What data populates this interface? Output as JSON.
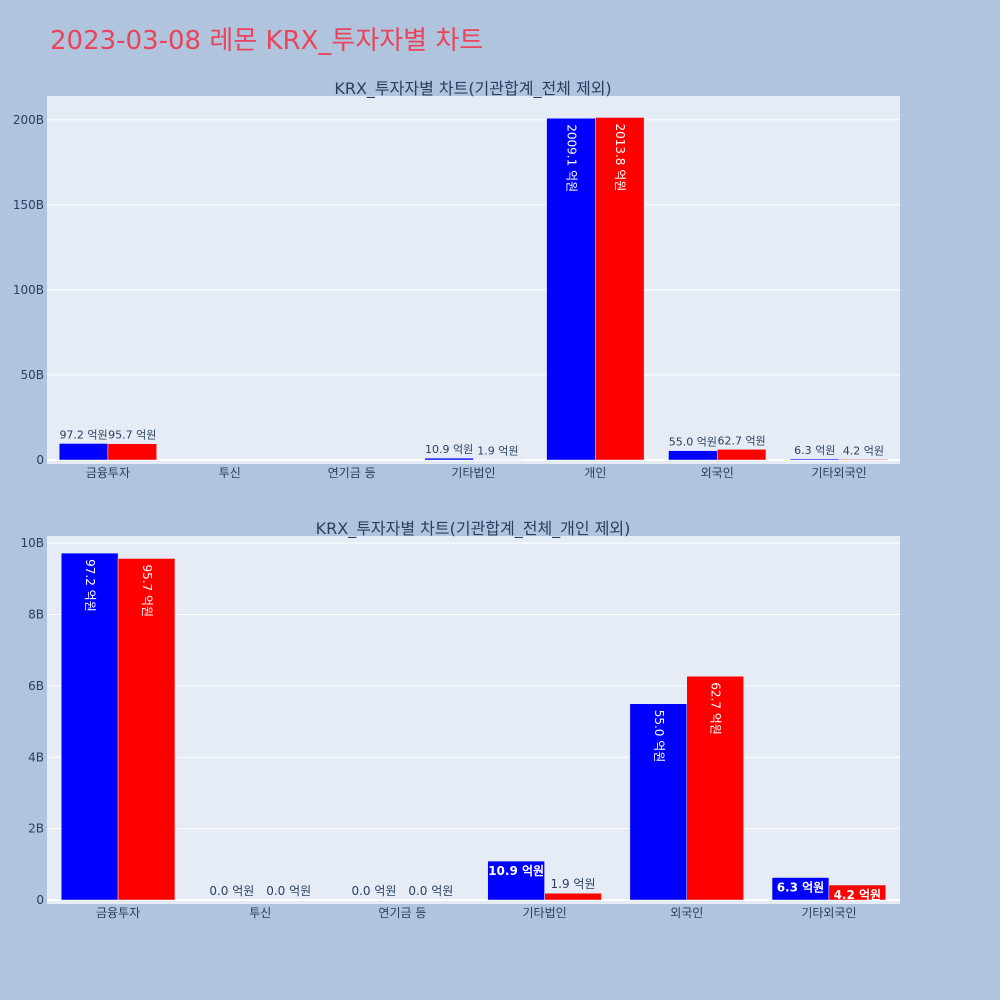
{
  "page_title": "2023-03-08 레몬 KRX_투자자별 차트",
  "colors": {
    "background": "#b0c4de",
    "plot_bg": "#e5ecf6",
    "title": "#e8445a",
    "series_a": "#0000ff",
    "series_b": "#ff0000",
    "text": "#2a3f5f"
  },
  "chart_data": [
    {
      "type": "bar",
      "title": "KRX_투자자별 차트(기관합계_전체 제외)",
      "categories": [
        "금융투자",
        "투신",
        "연기금 등",
        "기타법인",
        "개인",
        "외국인",
        "기타외국인"
      ],
      "series": [
        {
          "color": "#0000ff",
          "values": [
            9720000000,
            0,
            0,
            1090000000,
            200910000000,
            5500000000,
            630000000
          ],
          "labels": [
            "97.2 억원",
            "",
            "",
            "10.9 억원",
            "2009.1 억원",
            "55.0 억원",
            "6.3 억원"
          ]
        },
        {
          "color": "#ff0000",
          "values": [
            9570000000,
            0,
            0,
            190000000,
            201380000000,
            6270000000,
            420000000
          ],
          "labels": [
            "95.7 억원",
            "",
            "",
            "1.9 억원",
            "2013.8 억원",
            "62.7 억원",
            "4.2 억원"
          ]
        }
      ],
      "ylim": [
        0,
        214000000000
      ],
      "y_ticks": [
        0,
        50000000000,
        100000000000,
        150000000000,
        200000000000
      ],
      "y_tick_labels": [
        "0",
        "50B",
        "100B",
        "150B",
        "200B"
      ],
      "grid": true
    },
    {
      "type": "bar",
      "title": "KRX_투자자별 차트(기관합계_전체_개인 제외)",
      "categories": [
        "금융투자",
        "투신",
        "연기금 등",
        "기타법인",
        "외국인",
        "기타외국인"
      ],
      "series": [
        {
          "color": "#0000ff",
          "values": [
            9720000000,
            0,
            0,
            1090000000,
            5500000000,
            630000000
          ],
          "labels": [
            "97.2 억원",
            "0.0 억원",
            "0.0 억원",
            "10.9 억원",
            "55.0 억원",
            "6.3 억원"
          ]
        },
        {
          "color": "#ff0000",
          "values": [
            9570000000,
            0,
            0,
            190000000,
            6270000000,
            420000000
          ],
          "labels": [
            "95.7 억원",
            "0.0 억원",
            "0.0 억원",
            "1.9 억원",
            "62.7 억원",
            "4.2 억원"
          ]
        }
      ],
      "ylim": [
        0,
        10200000000
      ],
      "y_ticks": [
        0,
        2000000000,
        4000000000,
        6000000000,
        8000000000,
        10000000000
      ],
      "y_tick_labels": [
        "0",
        "2B",
        "4B",
        "6B",
        "8B",
        "10B"
      ],
      "grid": true
    }
  ]
}
